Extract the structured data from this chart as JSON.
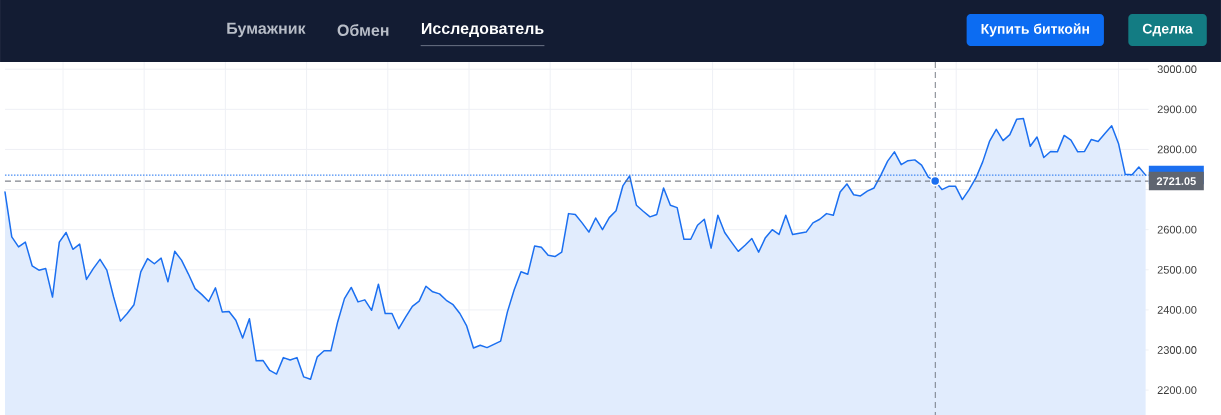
{
  "chart_data": {
    "type": "area",
    "annotations": [
      "Бумажник",
      "Обмен",
      "Исследователь",
      "Купить биткойн",
      "Сделка"
    ],
    "categories": [
      null,
      null,
      null,
      null,
      null,
      null,
      null,
      null,
      null,
      null,
      null,
      null,
      null,
      null,
      null,
      null,
      null,
      null,
      null,
      null,
      null,
      null,
      null,
      null,
      null,
      null,
      null,
      null,
      null,
      null,
      null,
      null,
      null,
      null,
      null,
      null,
      null,
      null,
      null,
      null,
      null,
      null,
      null,
      null,
      null,
      null,
      null,
      null,
      null,
      null,
      null,
      null,
      null,
      null,
      null,
      null,
      null,
      null,
      null,
      null,
      null,
      null,
      null,
      null,
      null,
      null,
      null,
      null,
      null,
      null,
      null,
      null,
      null,
      null,
      null,
      null,
      null,
      null,
      null,
      null,
      null,
      null,
      null,
      null,
      null,
      null,
      null,
      null,
      null,
      null,
      null,
      null,
      null,
      null,
      null,
      null,
      null,
      null,
      null,
      null,
      null,
      null,
      null,
      null,
      null,
      null,
      null,
      null,
      null,
      null,
      null,
      null,
      null,
      null,
      null,
      null,
      null,
      null,
      null,
      null,
      null,
      null,
      null,
      null,
      null,
      null,
      null,
      null,
      null,
      null,
      null,
      null,
      null,
      null,
      null,
      null,
      null,
      null,
      null,
      null,
      null,
      null,
      null,
      null,
      null,
      null,
      null,
      null,
      null,
      null,
      null,
      null,
      null,
      null,
      null,
      null,
      null,
      null,
      null,
      null,
      null,
      null,
      null,
      null,
      null,
      null,
      null,
      null,
      null
    ],
    "series": [
      {
        "color": "#1b6ff0",
        "values": [
          2694,
          2582,
          2557,
          2569,
          2510,
          2499,
          2503,
          2432,
          2569,
          2593,
          2551,
          2564,
          2476,
          2503,
          2526,
          2499,
          2432,
          2372,
          2391,
          2413,
          2495,
          2528,
          2515,
          2529,
          2470,
          2546,
          2524,
          2490,
          2453,
          2438,
          2421,
          2455,
          2395,
          2396,
          2374,
          2330,
          2378,
          2273,
          2274,
          2249,
          2240,
          2281,
          2275,
          2281,
          2233,
          2227,
          2283,
          2298,
          2298,
          2370,
          2428,
          2456,
          2420,
          2425,
          2399,
          2464,
          2391,
          2391,
          2353,
          2382,
          2409,
          2422,
          2459,
          2445,
          2440,
          2424,
          2413,
          2391,
          2360,
          2305,
          2312,
          2306,
          2314,
          2322,
          2395,
          2450,
          2495,
          2489,
          2559,
          2556,
          2536,
          2533,
          2544,
          2640,
          2638,
          2617,
          2594,
          2629,
          2600,
          2630,
          2647,
          2709,
          2734,
          2661,
          2646,
          2632,
          2638,
          2704,
          2661,
          2655,
          2576,
          2576,
          2611,
          2626,
          2554,
          2636,
          2593,
          2569,
          2546,
          2561,
          2578,
          2544,
          2580,
          2600,
          2588,
          2636,
          2588,
          2591,
          2594,
          2617,
          2626,
          2640,
          2636,
          2694,
          2714,
          2687,
          2684,
          2696,
          2704,
          2736,
          2771,
          2794,
          2762,
          2772,
          2774,
          2761,
          2731,
          2721.05,
          2700,
          2708,
          2708,
          2675,
          2700,
          2729,
          2769,
          2820,
          2850,
          2822,
          2837,
          2875,
          2877,
          2808,
          2831,
          2780,
          2795,
          2794,
          2835,
          2823,
          2794,
          2795,
          2825,
          2820,
          2840,
          2859,
          2815,
          2738,
          2737,
          2756,
          2736
        ]
      }
    ],
    "ylim": [
      2138,
      3018
    ],
    "yticks": [
      {
        "value": 2200,
        "label": "2200.00"
      },
      {
        "value": 2300,
        "label": "2300.00"
      },
      {
        "value": 2400,
        "label": "2400.00"
      },
      {
        "value": 2500,
        "label": "2500.00"
      },
      {
        "value": 2600,
        "label": "2600.00"
      },
      {
        "value": 2700,
        "label": null
      },
      {
        "value": 2800,
        "label": "2800.00"
      },
      {
        "value": 2900,
        "label": "2900.00"
      },
      {
        "value": 3000,
        "label": "3000.00"
      }
    ],
    "grid": true,
    "tick_labels": "y",
    "ref_lines": [
      {
        "axis": "y",
        "value": 2736,
        "color": "#1b6ff0",
        "line_style": "dotted"
      },
      {
        "axis": "y",
        "value": 2721.05,
        "label": "2721.05",
        "color": "#5f6570",
        "line_style": "dashed"
      }
    ]
  }
}
